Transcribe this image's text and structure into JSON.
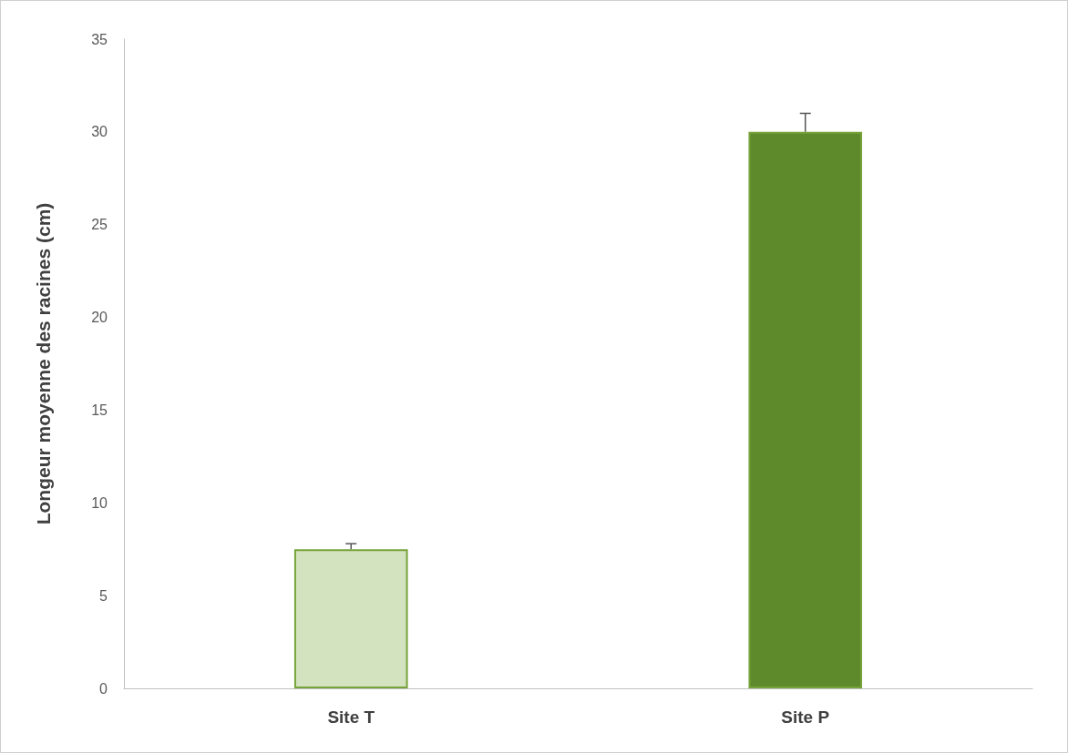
{
  "chart_data": {
    "type": "bar",
    "ylabel": "Longeur moyenne des racines (cm)",
    "categories": [
      "Site T",
      "Site P"
    ],
    "values": [
      7.5,
      30
    ],
    "colors": [
      "#d3e3bf",
      "#5f8a2c"
    ],
    "errors": [
      [
        7.5,
        7.8
      ],
      [
        30,
        31
      ]
    ],
    "ylim": [
      0,
      35
    ],
    "yticks": [
      0,
      5,
      10,
      15,
      20,
      25,
      30,
      35
    ],
    "grid": false
  }
}
